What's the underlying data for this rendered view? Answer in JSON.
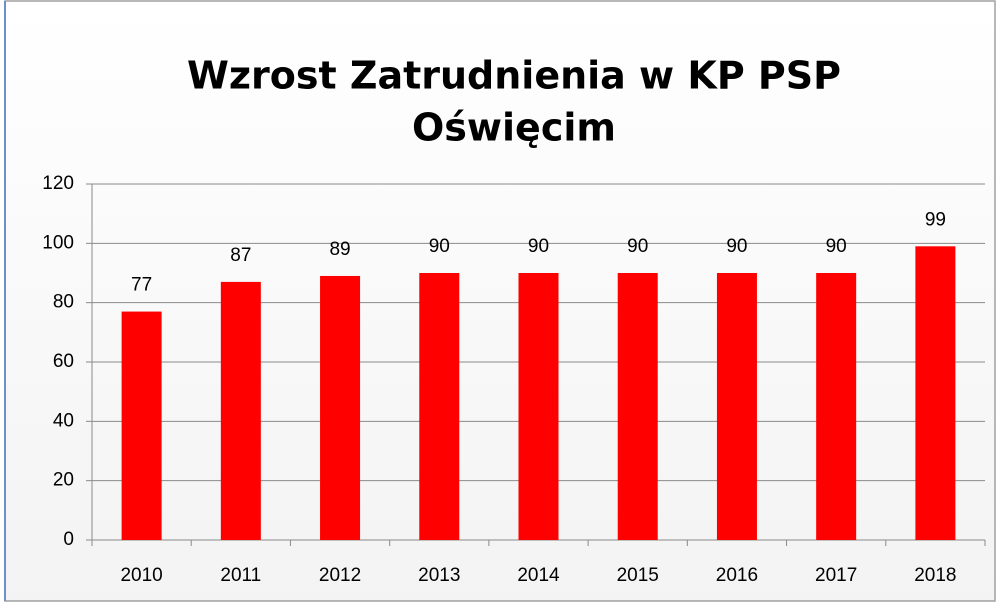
{
  "chart_data": {
    "type": "bar",
    "title": [
      "Wzrost Zatrudnienia w KP PSP",
      "Oświęcim"
    ],
    "categories": [
      "2010",
      "2011",
      "2012",
      "2013",
      "2014",
      "2015",
      "2016",
      "2017",
      "2018"
    ],
    "values": [
      77,
      87,
      89,
      90,
      90,
      90,
      90,
      90,
      99
    ],
    "color": "#ff0000",
    "ylim": [
      0,
      120
    ],
    "yticks": [
      0,
      20,
      40,
      60,
      80,
      100,
      120
    ],
    "grid": true
  }
}
